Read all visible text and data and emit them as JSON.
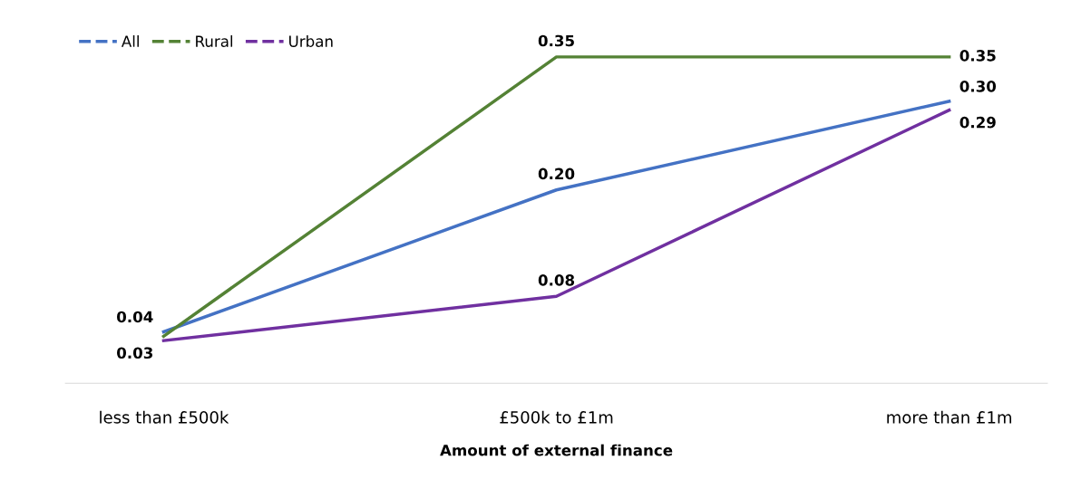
{
  "chart_data": {
    "type": "line",
    "xlabel": "Amount of external finance",
    "categories": [
      "less than £500k",
      "£500k to £1m",
      "more than £1m"
    ],
    "series": [
      {
        "name": "All",
        "color": "#4472c4",
        "values": [
          0.04,
          0.2,
          0.3
        ],
        "value_labels": [
          "0.04",
          "0.20",
          "0.30"
        ]
      },
      {
        "name": "Rural",
        "color": "#548235",
        "values": [
          0.035,
          0.35,
          0.35
        ],
        "value_labels": [
          null,
          "0.35",
          "0.35"
        ]
      },
      {
        "name": "Urban",
        "color": "#7030a0",
        "values": [
          0.03,
          0.08,
          0.29
        ],
        "value_labels": [
          "0.03",
          "0.08",
          "0.29"
        ]
      }
    ],
    "tick_labels": "x",
    "legend": "top left",
    "grid": false,
    "marker": "none",
    "line_style": "solid"
  }
}
